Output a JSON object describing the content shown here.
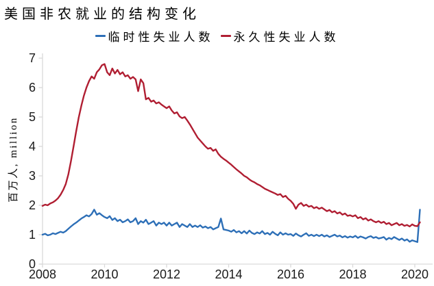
{
  "title": "美国非农就业的结构变化",
  "legend": [
    {
      "label": "临时性失业人数",
      "color": "#2d6fb7"
    },
    {
      "label": "永久性失业人数",
      "color": "#b01e32"
    }
  ],
  "y_axis": {
    "label": "百万人, million",
    "ticks": [
      0,
      1,
      2,
      3,
      4,
      5,
      6,
      7
    ]
  },
  "x_axis": {
    "ticks": [
      2008,
      2010,
      2012,
      2014,
      2016,
      2018,
      2020
    ]
  },
  "colors": {
    "axis": "#d9d9d9",
    "tick_label": "#1a1a1a",
    "background": "#ffffff"
  },
  "chart_data": {
    "type": "line",
    "title": "美国非农就业的结构变化",
    "xlabel": "",
    "ylabel": "百万人, million",
    "ylim": [
      0,
      7
    ],
    "xlim": [
      2008,
      2020.25
    ],
    "grid": false,
    "legend_position": "top-center",
    "x_start": "2008-01",
    "x_frequency": "monthly",
    "x_tick_labels": [
      2008,
      2010,
      2012,
      2014,
      2016,
      2018,
      2020
    ],
    "series": [
      {
        "name": "临时性失业人数",
        "color": "#2d6fb7",
        "values": [
          1.0,
          1.03,
          0.98,
          1.0,
          1.05,
          1.02,
          1.06,
          1.1,
          1.07,
          1.12,
          1.2,
          1.28,
          1.35,
          1.41,
          1.48,
          1.55,
          1.6,
          1.66,
          1.62,
          1.7,
          1.85,
          1.68,
          1.73,
          1.66,
          1.6,
          1.56,
          1.63,
          1.5,
          1.56,
          1.46,
          1.51,
          1.42,
          1.46,
          1.52,
          1.42,
          1.46,
          1.56,
          1.36,
          1.46,
          1.41,
          1.51,
          1.36,
          1.41,
          1.46,
          1.31,
          1.41,
          1.36,
          1.41,
          1.31,
          1.41,
          1.31,
          1.36,
          1.41,
          1.26,
          1.36,
          1.31,
          1.26,
          1.36,
          1.26,
          1.31,
          1.26,
          1.32,
          1.24,
          1.28,
          1.22,
          1.26,
          1.18,
          1.22,
          1.26,
          1.55,
          1.18,
          1.16,
          1.14,
          1.1,
          1.16,
          1.08,
          1.12,
          1.05,
          1.12,
          1.04,
          1.14,
          1.06,
          1.02,
          1.08,
          1.04,
          1.12,
          1.02,
          1.06,
          1.0,
          1.1,
          1.03,
          0.98,
          1.08,
          1.0,
          1.05,
          1.0,
          1.02,
          0.96,
          1.04,
          0.98,
          0.94,
          1.0,
          1.05,
          0.96,
          1.0,
          0.95,
          1.0,
          0.95,
          1.0,
          0.94,
          0.98,
          0.92,
          0.96,
          1.0,
          0.94,
          0.97,
          0.91,
          0.95,
          0.9,
          0.94,
          0.91,
          0.96,
          0.89,
          0.94,
          0.91,
          0.87,
          0.92,
          0.95,
          0.89,
          0.92,
          0.87,
          0.89,
          0.92,
          0.83,
          0.89,
          0.85,
          0.92,
          0.87,
          0.82,
          0.87,
          0.8,
          0.84,
          0.76,
          0.81,
          0.78,
          0.75,
          1.85
        ]
      },
      {
        "name": "永久性失业人数",
        "color": "#b01e32",
        "values": [
          1.98,
          2.02,
          2.0,
          2.06,
          2.1,
          2.16,
          2.24,
          2.36,
          2.52,
          2.72,
          3.05,
          3.5,
          4.0,
          4.5,
          4.98,
          5.38,
          5.72,
          6.0,
          6.22,
          6.38,
          6.3,
          6.52,
          6.62,
          6.76,
          6.8,
          6.52,
          6.42,
          6.65,
          6.48,
          6.6,
          6.45,
          6.52,
          6.38,
          6.42,
          6.3,
          6.36,
          6.28,
          5.88,
          6.28,
          6.15,
          5.6,
          5.65,
          5.52,
          5.56,
          5.46,
          5.5,
          5.42,
          5.36,
          5.3,
          5.36,
          5.22,
          5.12,
          5.16,
          5.02,
          4.96,
          5.0,
          4.88,
          4.75,
          4.6,
          4.45,
          4.3,
          4.2,
          4.1,
          4.0,
          3.92,
          3.95,
          3.85,
          3.9,
          3.75,
          3.65,
          3.58,
          3.52,
          3.45,
          3.38,
          3.3,
          3.22,
          3.15,
          3.08,
          3.0,
          2.95,
          2.88,
          2.82,
          2.78,
          2.72,
          2.68,
          2.62,
          2.56,
          2.52,
          2.48,
          2.44,
          2.4,
          2.35,
          2.38,
          2.28,
          2.32,
          2.22,
          2.15,
          2.05,
          1.88,
          2.02,
          2.08,
          1.98,
          2.02,
          1.95,
          1.98,
          1.9,
          1.94,
          1.88,
          1.92,
          1.86,
          1.8,
          1.84,
          1.76,
          1.8,
          1.72,
          1.76,
          1.68,
          1.72,
          1.64,
          1.66,
          1.62,
          1.66,
          1.56,
          1.6,
          1.52,
          1.56,
          1.48,
          1.52,
          1.46,
          1.42,
          1.46,
          1.4,
          1.44,
          1.36,
          1.4,
          1.32,
          1.36,
          1.4,
          1.32,
          1.36,
          1.3,
          1.33,
          1.28,
          1.35,
          1.3,
          1.29,
          1.42
        ]
      }
    ]
  }
}
